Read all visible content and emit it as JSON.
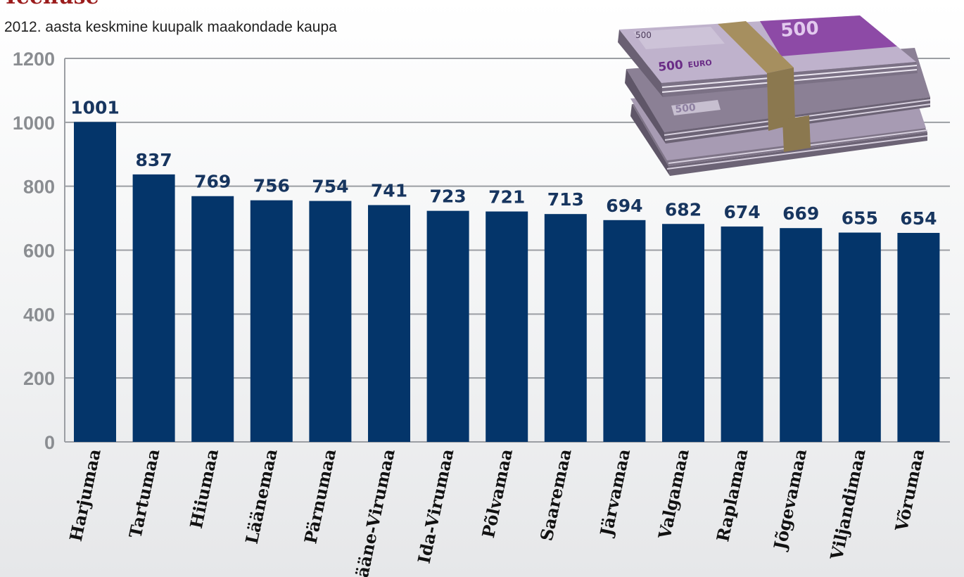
{
  "heading": "Teenuse",
  "subtitle": "2012. aasta keskmine kuupalk maakondade kaupa",
  "colors": {
    "bar": "#04356a",
    "grid": "#9b9ea3",
    "value_label": "#17355f",
    "tick": "#8a8d91",
    "heading": "#9b1c1c"
  },
  "illustration": {
    "note_text": "500",
    "currency_text": "EURO"
  },
  "chart_data": {
    "type": "bar",
    "title": "2012. aasta keskmine kuupalk maakondade kaupa",
    "xlabel": "",
    "ylabel": "",
    "ylim": [
      0,
      1200
    ],
    "yticks": [
      0,
      200,
      400,
      600,
      800,
      1000,
      1200
    ],
    "grid": true,
    "categories": [
      "Harjumaa",
      "Tartumaa",
      "Hiiumaa",
      "Läänemaa",
      "Pärnumaa",
      "Lääne-Virumaa",
      "Ida-Virumaa",
      "Põlvamaa",
      "Saaremaa",
      "Järvamaa",
      "Valgamaa",
      "Raplamaa",
      "Jõgevamaa",
      "Viljandimaa",
      "Võrumaa"
    ],
    "values": [
      1001,
      837,
      769,
      756,
      754,
      741,
      723,
      721,
      713,
      694,
      682,
      674,
      669,
      655,
      654
    ]
  }
}
